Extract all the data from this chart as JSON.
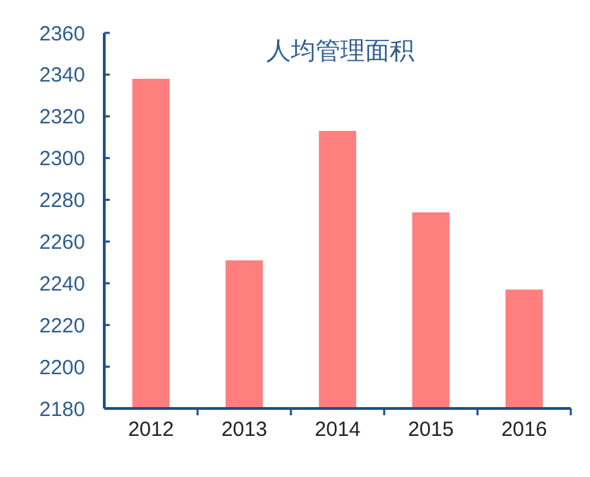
{
  "chart_data": {
    "type": "bar",
    "title": "人均管理面积",
    "categories": [
      "2012",
      "2013",
      "2014",
      "2015",
      "2016"
    ],
    "values": [
      2338,
      2251,
      2313,
      2274,
      2237
    ],
    "color": "#ff7f7f",
    "ylim": [
      2180,
      2360
    ],
    "yticks": [
      2180,
      2200,
      2220,
      2240,
      2260,
      2280,
      2300,
      2320,
      2340,
      2360
    ],
    "grid": false
  }
}
